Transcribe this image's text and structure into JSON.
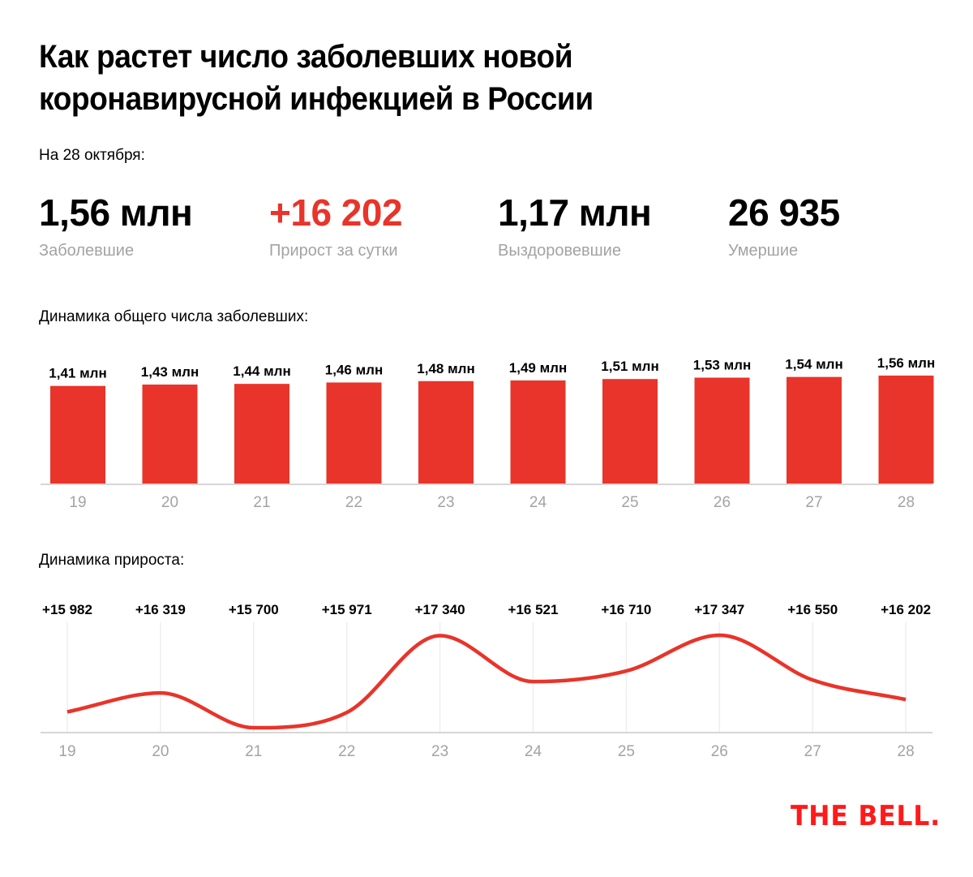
{
  "header": {
    "title_line1": "Как растет число заболевших новой",
    "title_line2": "коронавирусной инфекцией в России",
    "as_of": "На 28 октября:"
  },
  "stats": [
    {
      "value": "1,56 млн",
      "label": "Заболевшие"
    },
    {
      "value": "+16 202",
      "label": "Прирост за сутки"
    },
    {
      "value": "1,17 млн",
      "label": "Выздоровевшие"
    },
    {
      "value": "26 935",
      "label": "Умершие"
    }
  ],
  "colors": {
    "accent": "#e8342a",
    "logo": "#ff1a1a",
    "muted": "#a3a3a3",
    "grid": "#eeeeee",
    "axis": "#d6d6d6"
  },
  "chart_data": [
    {
      "type": "bar",
      "title": "Динамика общего числа заболевших:",
      "categories": [
        "19",
        "20",
        "21",
        "22",
        "23",
        "24",
        "25",
        "26",
        "27",
        "28"
      ],
      "values": [
        1.41,
        1.43,
        1.44,
        1.46,
        1.48,
        1.49,
        1.51,
        1.53,
        1.54,
        1.56
      ],
      "data_labels": [
        "1,41 млн",
        "1,43 млн",
        "1,44 млн",
        "1,46 млн",
        "1,48 млн",
        "1,49 млн",
        "1,51 млн",
        "1,53 млн",
        "1,54 млн",
        "1,56 млн"
      ],
      "unit": "млн",
      "ylim": [
        0,
        1.56
      ],
      "grid": false
    },
    {
      "type": "line",
      "title": "Динамика прироста:",
      "categories": [
        "19",
        "20",
        "21",
        "22",
        "23",
        "24",
        "25",
        "26",
        "27",
        "28"
      ],
      "values": [
        15982,
        16319,
        15700,
        15971,
        17340,
        16521,
        16710,
        17347,
        16550,
        16202
      ],
      "data_labels": [
        "+15 982",
        "+16 319",
        "+15 700",
        "+15 971",
        "+17 340",
        "+16 521",
        "+16 710",
        "+17 347",
        "+16 550",
        "+16 202"
      ],
      "ylim": [
        15700,
        17347
      ],
      "grid": true
    }
  ],
  "logo": "THE BELL."
}
